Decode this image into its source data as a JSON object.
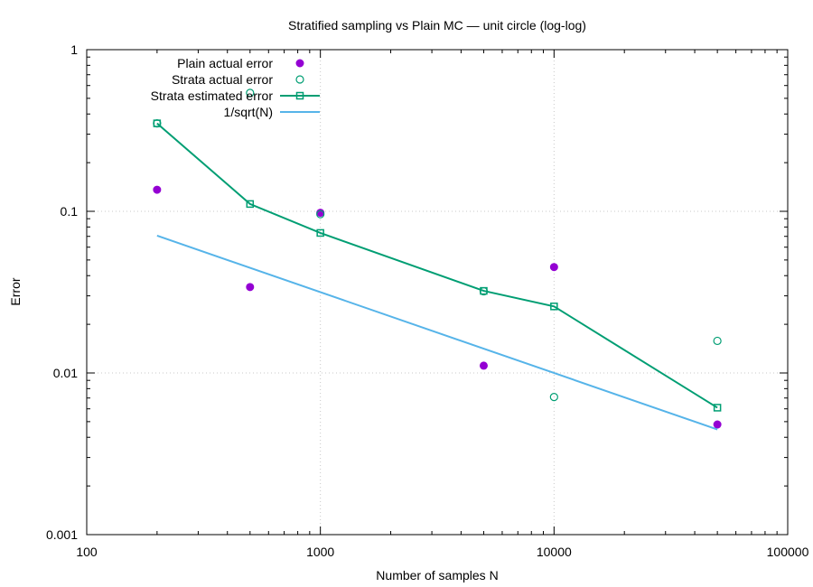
{
  "chart_data": {
    "type": "scatter",
    "title": "Stratified sampling vs Plain MC — unit circle (log-log)",
    "xlabel": "Number of samples N",
    "ylabel": "Error",
    "xscale": "log",
    "yscale": "log",
    "xlim": [
      100,
      100000
    ],
    "ylim": [
      0.001,
      1
    ],
    "xticks": [
      {
        "value": 100,
        "label": "100"
      },
      {
        "value": 1000,
        "label": "1000"
      },
      {
        "value": 10000,
        "label": "10000"
      },
      {
        "value": 100000,
        "label": "100000"
      }
    ],
    "yticks": [
      {
        "value": 0.001,
        "label": "0.001"
      },
      {
        "value": 0.01,
        "label": "0.01"
      },
      {
        "value": 0.1,
        "label": "0.1"
      },
      {
        "value": 1,
        "label": "1"
      }
    ],
    "grid": true,
    "legend_position": "top-left",
    "series": [
      {
        "name": "Plain actual error",
        "style": "points",
        "marker": "filled-circle",
        "color": "#9400d3",
        "x": [
          200,
          500,
          1000,
          5000,
          10000,
          50000
        ],
        "y": [
          0.136,
          0.034,
          0.098,
          0.0111,
          0.0452,
          0.0048
        ]
      },
      {
        "name": "Strata actual error",
        "style": "points",
        "marker": "open-circle",
        "color": "#009e73",
        "x": [
          200,
          500,
          1000,
          5000,
          10000,
          50000
        ],
        "y": [
          0.35,
          0.54,
          0.096,
          0.032,
          0.0071,
          0.0158
        ]
      },
      {
        "name": "Strata estimated error",
        "style": "linespoints",
        "marker": "open-square",
        "color": "#009e73",
        "x": [
          200,
          500,
          1000,
          5000,
          10000,
          50000
        ],
        "y": [
          0.35,
          0.111,
          0.0735,
          0.0322,
          0.0258,
          0.0061
        ]
      },
      {
        "name": "1/sqrt(N)",
        "style": "line",
        "marker": "none",
        "color": "#56b4e9",
        "x": [
          200,
          50000
        ],
        "y": [
          0.0707,
          0.00447
        ]
      }
    ]
  }
}
